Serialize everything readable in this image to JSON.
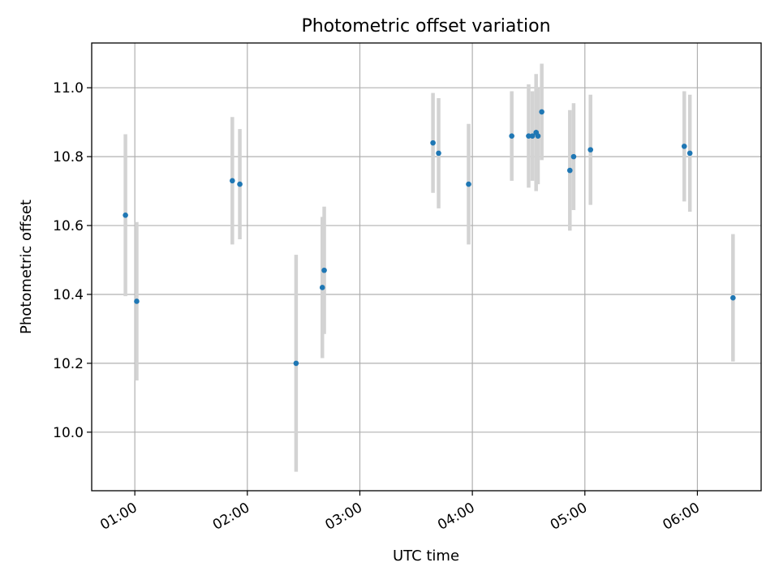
{
  "chart_data": {
    "type": "scatter",
    "title": "Photometric offset variation",
    "xlabel": "UTC time",
    "ylabel": "Photometric offset",
    "x_ticks": [
      "01:00",
      "02:00",
      "03:00",
      "04:00",
      "05:00",
      "06:00"
    ],
    "xlim": [
      "00:37",
      "06:34"
    ],
    "y_ticks": [
      "10.0",
      "10.2",
      "10.4",
      "10.6",
      "10.8",
      "11.0"
    ],
    "ylim": [
      9.83,
      11.13
    ],
    "grid": true,
    "marker_color": "#1f77b4",
    "errorbar_color": "#d3d3d3",
    "series": [
      {
        "x": [
          "00:55",
          "01:01",
          "01:52",
          "01:56",
          "02:26",
          "02:40",
          "02:41",
          "03:39",
          "03:42",
          "03:58",
          "04:21",
          "04:30",
          "04:32",
          "04:34",
          "04:34",
          "04:35",
          "04:37",
          "04:52",
          "04:54",
          "05:03",
          "05:53",
          "05:56",
          "06:19"
        ],
        "y": [
          10.63,
          10.38,
          10.73,
          10.72,
          10.2,
          10.42,
          10.47,
          10.84,
          10.81,
          10.72,
          10.86,
          10.86,
          10.86,
          10.87,
          10.87,
          10.86,
          10.93,
          10.76,
          10.8,
          10.82,
          10.83,
          10.81,
          10.39
        ],
        "yerr": [
          0.235,
          0.23,
          0.185,
          0.16,
          0.315,
          0.205,
          0.185,
          0.145,
          0.16,
          0.175,
          0.13,
          0.15,
          0.13,
          0.135,
          0.17,
          0.14,
          0.14,
          0.175,
          0.155,
          0.16,
          0.16,
          0.17,
          0.185
        ]
      }
    ]
  }
}
